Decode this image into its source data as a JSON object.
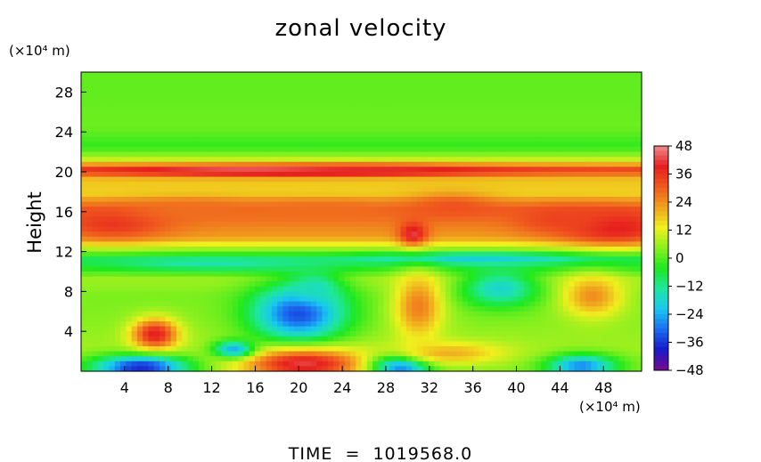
{
  "chart_data": {
    "type": "heatmap",
    "title": "zonal velocity",
    "ylabel": "Height",
    "x_unit_label": "(×10⁴ m)",
    "y_unit_label": "(×10⁴ m)",
    "footer": "TIME  =  1019568.0",
    "xlim": [
      0,
      51.5
    ],
    "ylim": [
      0,
      30
    ],
    "xticks": [
      4,
      8,
      12,
      16,
      20,
      24,
      28,
      32,
      36,
      40,
      44,
      48
    ],
    "yticks": [
      4,
      8,
      12,
      16,
      20,
      24,
      28
    ],
    "grid": false,
    "colorbar": {
      "range": [
        -48,
        48
      ],
      "ticks": [
        48,
        36,
        24,
        12,
        0,
        -12,
        -24,
        -36,
        -48
      ],
      "colors": [
        "#7a0a8c",
        "#1818c8",
        "#1a6cf0",
        "#19c8f0",
        "#1ee6a0",
        "#1ee81e",
        "#8cf01e",
        "#f0f01e",
        "#f0a01e",
        "#f05a1e",
        "#e61e1e",
        "#f08c8c"
      ],
      "placement": "right"
    },
    "layers": [
      {
        "y": 28,
        "value": 1
      },
      {
        "y": 24.5,
        "value": 2
      },
      {
        "y": 22.5,
        "value": -3
      },
      {
        "y": 21.3,
        "value": 8
      },
      {
        "y": 20.2,
        "value": 34
      },
      {
        "y": 19.2,
        "value": 18
      },
      {
        "y": 17.8,
        "value": 16
      },
      {
        "y": 16.2,
        "value": 30
      },
      {
        "y": 14.8,
        "value": 26
      },
      {
        "y": 13.4,
        "value": 22
      },
      {
        "y": 12.4,
        "value": 8
      },
      {
        "y": 11.2,
        "value": -8
      },
      {
        "y": 10.4,
        "value": -4
      },
      {
        "y": 9.2,
        "value": 6
      },
      {
        "y": 7.5,
        "value": 3
      },
      {
        "y": 5,
        "value": 4
      },
      {
        "y": 2.5,
        "value": 6
      },
      {
        "y": 0.6,
        "value": 4
      }
    ],
    "features": [
      {
        "x": 19,
        "y": 20.1,
        "sx": 11,
        "sy": 0.35,
        "value": 46
      },
      {
        "x": 26,
        "y": 20.2,
        "sx": 6,
        "sy": 0.3,
        "value": 40
      },
      {
        "x": 3,
        "y": 14.8,
        "sx": 3.5,
        "sy": 1.1,
        "value": 36
      },
      {
        "x": 49,
        "y": 14.4,
        "sx": 3.5,
        "sy": 1.2,
        "value": 40
      },
      {
        "x": 44,
        "y": 15.2,
        "sx": 3,
        "sy": 1.0,
        "value": 34
      },
      {
        "x": 34,
        "y": 16.5,
        "sx": 3,
        "sy": 0.9,
        "value": 32
      },
      {
        "x": 30.5,
        "y": 13.8,
        "sx": 0.9,
        "sy": 0.8,
        "value": 42
      },
      {
        "x": 10,
        "y": 16.3,
        "sx": 4,
        "sy": 0.8,
        "value": 28
      },
      {
        "x": 22,
        "y": 16.3,
        "sx": 5,
        "sy": 0.7,
        "value": 28
      },
      {
        "x": 36,
        "y": 11.3,
        "sx": 7,
        "sy": 0.4,
        "value": -20
      },
      {
        "x": 12,
        "y": 10.8,
        "sx": 6,
        "sy": 0.5,
        "value": -14
      },
      {
        "x": 20,
        "y": 5.8,
        "sx": 3,
        "sy": 2.0,
        "value": -34
      },
      {
        "x": 21.5,
        "y": 8.4,
        "sx": 1.6,
        "sy": 1.0,
        "value": -16
      },
      {
        "x": 38.5,
        "y": 8.3,
        "sx": 2.5,
        "sy": 1.3,
        "value": -18
      },
      {
        "x": 31,
        "y": 6.5,
        "sx": 1.6,
        "sy": 2.3,
        "value": 26
      },
      {
        "x": 47,
        "y": 7.5,
        "sx": 2.0,
        "sy": 1.5,
        "value": 24
      },
      {
        "x": 6.8,
        "y": 3.7,
        "sx": 1.5,
        "sy": 1.1,
        "value": 40
      },
      {
        "x": 5.5,
        "y": 0.4,
        "sx": 3.0,
        "sy": 0.8,
        "value": -38
      },
      {
        "x": 20.5,
        "y": 0.7,
        "sx": 4.0,
        "sy": 1.1,
        "value": 42
      },
      {
        "x": 29.5,
        "y": 0.5,
        "sx": 1.8,
        "sy": 0.8,
        "value": -32
      },
      {
        "x": 46,
        "y": 0.5,
        "sx": 2.2,
        "sy": 0.8,
        "value": -28
      },
      {
        "x": 14,
        "y": 2.2,
        "sx": 1.3,
        "sy": 0.6,
        "value": -24
      },
      {
        "x": 34,
        "y": 1.8,
        "sx": 3.5,
        "sy": 0.8,
        "value": 20
      }
    ]
  }
}
